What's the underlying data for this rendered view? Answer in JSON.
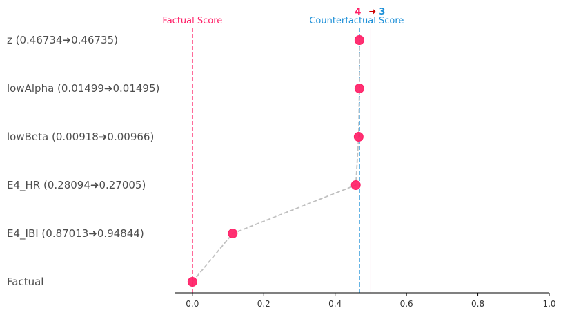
{
  "chart_data": {
    "type": "scatter",
    "x_axis": {
      "range": [
        -0.05,
        1.0
      ],
      "ticks": [
        0.0,
        0.2,
        0.4,
        0.6,
        0.8,
        1.0
      ],
      "tick_labels": [
        "0.0",
        "0.2",
        "0.4",
        "0.6",
        "0.8",
        "1.0"
      ]
    },
    "steps": [
      {
        "label": "z (0.46734➜0.46735)",
        "score": 0.468
      },
      {
        "label": "lowAlpha (0.01499➜0.01495)",
        "score": 0.468
      },
      {
        "label": "lowBeta (0.00918➜0.00966)",
        "score": 0.466
      },
      {
        "label": "E4_HR (0.28094➜0.27005)",
        "score": 0.458
      },
      {
        "label": "E4_IBI (0.87013➜0.94844)",
        "score": 0.113
      },
      {
        "label": "Factual",
        "score": 0.0
      }
    ],
    "factual_score": {
      "label": "Factual Score",
      "value": 0.0
    },
    "counterfactual_score": {
      "label": "Counterfactual Score",
      "value": 0.468
    },
    "threshold": 0.5,
    "class_change": {
      "from": "4",
      "arrow": "➜",
      "to": "3"
    },
    "colors": {
      "marker": "#ff1e66",
      "path": "#c0c0c0",
      "factual_line": "#ff1e66",
      "counterfactual_line": "#1e90d8",
      "threshold_line": "#c23a5a",
      "from_class": "#ff1e66",
      "arrow": "#cc0000",
      "to_class": "#1e90d8"
    },
    "grid": false
  }
}
